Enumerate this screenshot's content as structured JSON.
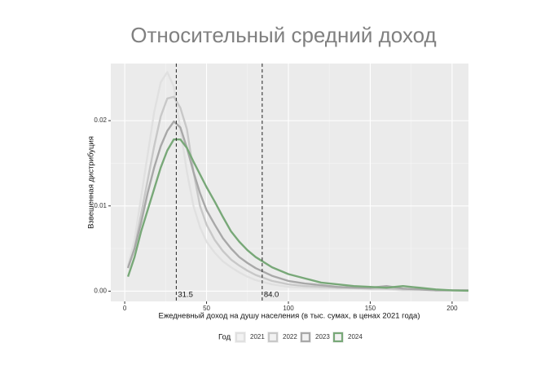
{
  "chart_data": {
    "type": "line",
    "title": "Относительный средний доход",
    "x_label": "Ежедневный доход на душу населения (в тыс. сумах, в ценах 2021 года)",
    "y_label": "Взвешенная дистрибуция",
    "legend_title": "Год",
    "legend_position": "bottom",
    "grid": true,
    "x": [
      2,
      6,
      10,
      14,
      18,
      22,
      26,
      30,
      34,
      38,
      42,
      46,
      50,
      55,
      60,
      65,
      70,
      75,
      80,
      90,
      100,
      110,
      120,
      130,
      140,
      150,
      160,
      170,
      180,
      190,
      200,
      210
    ],
    "series": [
      {
        "name": "2021",
        "color": "#e0e0e0",
        "values": [
          0.003,
          0.006,
          0.011,
          0.016,
          0.021,
          0.0245,
          0.0257,
          0.024,
          0.019,
          0.014,
          0.01,
          0.0075,
          0.0058,
          0.0045,
          0.0035,
          0.0028,
          0.0022,
          0.0017,
          0.0013,
          0.0008,
          0.0005,
          0.0004,
          0.0003,
          0.0003,
          0.0003,
          0.0002,
          0.0002,
          0.0001,
          0.0001,
          0.0001,
          0.0001,
          0.0001
        ]
      },
      {
        "name": "2022",
        "color": "#c8c8c8",
        "values": [
          0.0028,
          0.005,
          0.009,
          0.013,
          0.017,
          0.0205,
          0.0226,
          0.0228,
          0.0215,
          0.019,
          0.014,
          0.01,
          0.0078,
          0.006,
          0.0047,
          0.0037,
          0.003,
          0.0024,
          0.0019,
          0.0012,
          0.0008,
          0.0006,
          0.0005,
          0.0004,
          0.0004,
          0.0003,
          0.0003,
          0.0002,
          0.0002,
          0.0001,
          0.0001,
          0.0001
        ]
      },
      {
        "name": "2023",
        "color": "#a8a8a8",
        "values": [
          0.0027,
          0.005,
          0.008,
          0.0115,
          0.0145,
          0.017,
          0.0188,
          0.0199,
          0.0192,
          0.0168,
          0.014,
          0.0115,
          0.0095,
          0.0078,
          0.0062,
          0.005,
          0.004,
          0.0033,
          0.0027,
          0.0018,
          0.0012,
          0.0009,
          0.0007,
          0.0005,
          0.0004,
          0.0004,
          0.0006,
          0.0003,
          0.0002,
          0.0001,
          0.0001,
          0.0001
        ]
      },
      {
        "name": "2024",
        "color": "#78a878",
        "values": [
          0.0017,
          0.004,
          0.007,
          0.0095,
          0.012,
          0.0145,
          0.0165,
          0.0178,
          0.0178,
          0.0168,
          0.0152,
          0.0137,
          0.0122,
          0.0105,
          0.0087,
          0.007,
          0.0058,
          0.0048,
          0.004,
          0.0028,
          0.002,
          0.0015,
          0.001,
          0.0008,
          0.0006,
          0.0005,
          0.0004,
          0.0006,
          0.0004,
          0.0002,
          0.0001,
          5e-05
        ]
      }
    ],
    "vlines": [
      31.5,
      {
        "value": 84,
        "label": "84.0"
      }
    ],
    "xlim": [
      -8.5,
      210
    ],
    "ylim": [
      -0.0012,
      0.0267
    ],
    "xticks": [
      0,
      50,
      100,
      150,
      200
    ],
    "yticks": [
      {
        "value": 0,
        "label": "0.00"
      },
      0.01,
      0.02
    ]
  }
}
